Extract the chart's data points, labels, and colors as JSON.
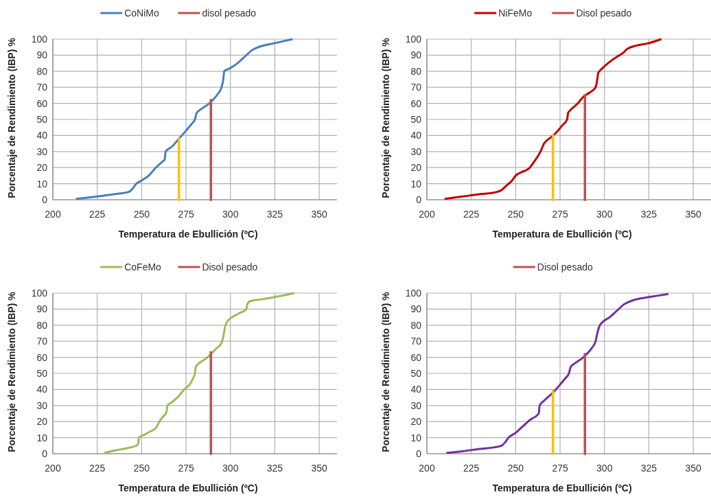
{
  "chart_data": [
    {
      "type": "line",
      "xlabel": "Temperatura de Ebullición (ºC)",
      "ylabel": "Porcentaje de Rendimiento  (IBP) %",
      "xlim": [
        200,
        360
      ],
      "xticks": [
        200,
        225,
        250,
        275,
        300,
        325,
        350
      ],
      "ylim": [
        0,
        100
      ],
      "yticks": [
        0,
        10,
        20,
        30,
        40,
        50,
        60,
        70,
        80,
        90,
        100
      ],
      "grid": true,
      "legend": "top",
      "series": [
        {
          "name": "CoNiMo",
          "color": "#4a7ebb",
          "x": [
            213,
            225,
            235,
            243,
            245,
            247,
            250,
            254,
            258,
            262,
            263,
            263.5,
            267,
            271,
            275,
            278,
            280,
            281,
            283,
            287,
            290,
            293,
            295,
            296,
            296.5,
            300,
            304,
            308,
            312,
            317,
            325,
            335
          ],
          "values": [
            0.5,
            2,
            3.5,
            5,
            7,
            10,
            12,
            15,
            20,
            24,
            25,
            30,
            33,
            38,
            43,
            47,
            50,
            54,
            56,
            59,
            62,
            66,
            70,
            75,
            80,
            82,
            85,
            89,
            93,
            95.5,
            97.5,
            100
          ]
        },
        {
          "name": "disol pesado",
          "color": "#c0504d",
          "x": [
            289,
            289
          ],
          "values": [
            0,
            62
          ]
        },
        {
          "color": "#ffc000",
          "x": [
            271,
            271
          ],
          "values": [
            0,
            38
          ]
        }
      ]
    },
    {
      "type": "line",
      "xlabel": "Temperatura de Ebullición (ºC)",
      "ylabel": "Porcentaje de Rendimiento  (IBP) %",
      "xlim": [
        200,
        360
      ],
      "xticks": [
        200,
        225,
        250,
        275,
        300,
        325,
        350
      ],
      "ylim": [
        0,
        100
      ],
      "yticks": [
        0,
        10,
        20,
        30,
        40,
        50,
        60,
        70,
        80,
        90,
        100
      ],
      "grid": true,
      "legend": "top",
      "series": [
        {
          "name": "NiFeMo",
          "color": "#c00000",
          "x": [
            210,
            220,
            230,
            238,
            242,
            245,
            248,
            250,
            253,
            258,
            260,
            263,
            264,
            266,
            270,
            273,
            276,
            279,
            279.5,
            281,
            285,
            288,
            292,
            295,
            296,
            296.5,
            298,
            302,
            307,
            310,
            313,
            318,
            325,
            332
          ],
          "values": [
            0.5,
            2,
            3.5,
            4.5,
            6,
            9,
            12,
            15,
            17,
            20,
            23,
            28,
            30,
            35,
            39,
            42,
            46,
            50,
            54,
            56,
            60,
            64,
            67,
            70,
            75,
            79,
            81,
            85,
            89,
            91,
            94,
            96,
            97.5,
            100
          ]
        },
        {
          "name": "Disol pesado",
          "color": "#c0504d",
          "x": [
            289,
            289
          ],
          "values": [
            0,
            65
          ]
        },
        {
          "color": "#ffc000",
          "x": [
            271,
            271
          ],
          "values": [
            0,
            40
          ]
        }
      ]
    },
    {
      "type": "line",
      "xlabel": "Temperatura de Ebullición (ºC)",
      "ylabel": "Porcentaje de Rendimiento  (IBP) %",
      "xlim": [
        200,
        360
      ],
      "xticks": [
        200,
        225,
        250,
        275,
        300,
        325,
        350
      ],
      "ylim": [
        0,
        100
      ],
      "yticks": [
        0,
        10,
        20,
        30,
        40,
        50,
        60,
        70,
        80,
        90,
        100
      ],
      "grid": true,
      "legend": "top",
      "series": [
        {
          "name": "CoFeMo",
          "color": "#9bbb59",
          "x": [
            229,
            235,
            242,
            247,
            248,
            248.5,
            252,
            255,
            258,
            260,
            262,
            264,
            264.5,
            267,
            271,
            274,
            277,
            279,
            280,
            280.5,
            282,
            286,
            289,
            292,
            295,
            296,
            297,
            298,
            301,
            305,
            309,
            309.5,
            311,
            317,
            325,
            336
          ],
          "values": [
            0.5,
            2,
            3.5,
            5,
            6,
            10,
            12,
            14,
            16,
            20,
            23,
            26,
            30,
            32,
            36,
            40,
            43,
            47,
            50,
            54,
            56,
            59,
            62,
            65.5,
            69,
            73,
            79,
            82,
            85,
            87.5,
            90,
            93,
            95,
            96,
            97.5,
            100
          ]
        },
        {
          "name": "Disol pesado",
          "color": "#c0504d",
          "x": [
            289,
            289
          ],
          "values": [
            0,
            63
          ]
        }
      ]
    },
    {
      "type": "line",
      "xlabel": "Temperatura de Ebullición (ºC)",
      "ylabel": "Porcentaje de Rendimiento  (IBP) %",
      "xlim": [
        200,
        360
      ],
      "xticks": [
        200,
        225,
        250,
        275,
        300,
        325,
        350
      ],
      "ylim": [
        0,
        100
      ],
      "yticks": [
        0,
        10,
        20,
        30,
        40,
        50,
        60,
        70,
        80,
        90,
        100
      ],
      "grid": true,
      "legend": "top",
      "series": [
        {
          "color": "#7030a0",
          "x": [
            211,
            220,
            230,
            238,
            242,
            244,
            246,
            250,
            254,
            258,
            263,
            263.5,
            266,
            271,
            275,
            278,
            280,
            281,
            283,
            287,
            290,
            293,
            295,
            296,
            297,
            299,
            303,
            307,
            311,
            316,
            325,
            336
          ],
          "values": [
            0.5,
            1.5,
            3,
            4,
            5,
            7,
            10,
            13,
            17,
            21,
            25,
            30,
            33,
            38,
            43,
            47,
            50,
            54,
            56,
            59,
            62,
            66,
            70,
            75,
            79,
            82,
            85,
            89,
            93,
            95.5,
            97.5,
            99.5
          ]
        },
        {
          "name": "Disol pesado",
          "color": "#c0504d",
          "x": [
            289,
            289
          ],
          "values": [
            0,
            62
          ]
        },
        {
          "color": "#ffc000",
          "x": [
            271,
            271
          ],
          "values": [
            0,
            39
          ]
        }
      ]
    }
  ]
}
